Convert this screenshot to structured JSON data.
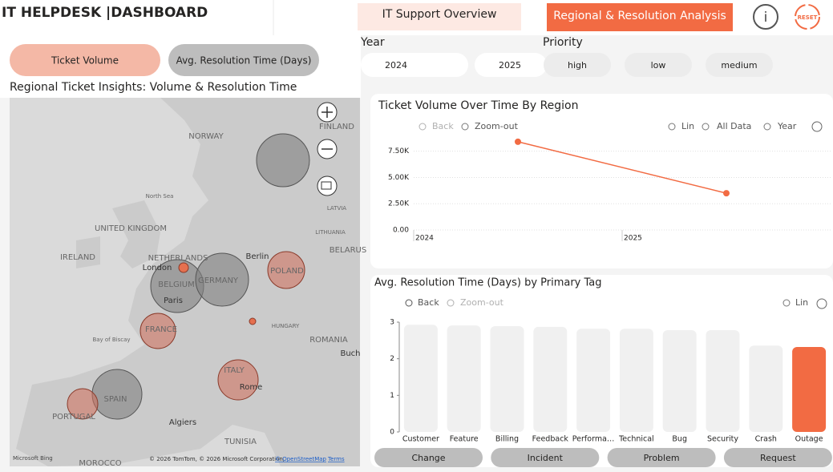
{
  "header": {
    "title": "IT HELPDESK  |DASHBOARD",
    "tabs": [
      "IT Support Overview",
      "Regional & Resolution Analysis"
    ],
    "info": "i",
    "reset": "RESET"
  },
  "toggles": [
    "Ticket Volume",
    "Avg. Resolution Time (Days)"
  ],
  "filters": {
    "year_label": "Year",
    "years": [
      "2024",
      "2025"
    ],
    "priority_label": "Priority",
    "priorities": [
      "high",
      "low",
      "medium"
    ]
  },
  "map": {
    "title": "Regional Ticket Insights: Volume & Resolution Time",
    "labels": [
      "FINLAND",
      "NORWAY",
      "North Sea",
      "UNITED KINGDOM",
      "IRELAND",
      "NETHERLANDS",
      "London",
      "BELGIUM",
      "Paris",
      "GERMANY",
      "Berlin",
      "POLAND",
      "BELARUS",
      "LATVIA",
      "LITHUANIA",
      "FRANCE",
      "Bay of Biscay",
      "HUNGARY",
      "ROMANIA",
      "Buch",
      "ITALY",
      "Rome",
      "SPAIN",
      "PORTUGAL",
      "Algiers",
      "TUNISIA",
      "MOROCCO"
    ],
    "brand": "Microsoft Bing",
    "attribution": "© 2026 TomTom, © 2026 Microsoft Corporation,",
    "osm": "© OpenStreetMap",
    "terms": "Terms"
  },
  "line_chart": {
    "type": "line",
    "title": "Ticket Volume Over Time By Region",
    "toolbar": [
      "Back",
      "Zoom-out",
      "Lin",
      "All Data",
      "Year"
    ],
    "categories": [
      "2024",
      "2025"
    ],
    "values": [
      8400,
      3500
    ],
    "color": "#f26b43",
    "ylim": [
      0,
      9000
    ],
    "yticks": [
      {
        "value": 0,
        "label": "0.00"
      },
      {
        "value": 2500,
        "label": "2.50K"
      },
      {
        "value": 5000,
        "label": "5.00K"
      },
      {
        "value": 7500,
        "label": "7.50K"
      }
    ],
    "grid": true
  },
  "bar_chart": {
    "type": "bar",
    "title": "Avg. Resolution Time (Days) by Primary Tag",
    "toolbar": [
      "Back",
      "Zoom-out",
      "Lin"
    ],
    "categories": [
      "Customer",
      "Feature",
      "Billing",
      "Feedback",
      "Performa…",
      "Technical",
      "Bug",
      "Security",
      "Crash",
      "Outage"
    ],
    "values": [
      2.93,
      2.91,
      2.89,
      2.87,
      2.82,
      2.82,
      2.78,
      2.78,
      2.36,
      2.32
    ],
    "colors": [
      "#f0f0f0",
      "#f0f0f0",
      "#f0f0f0",
      "#f0f0f0",
      "#f0f0f0",
      "#f0f0f0",
      "#f0f0f0",
      "#f0f0f0",
      "#f0f0f0",
      "#f26b43"
    ],
    "ylim": [
      0,
      3
    ],
    "yticks": [
      0,
      1,
      2,
      3
    ]
  },
  "buttons": [
    "Change",
    "Incident",
    "Problem",
    "Request"
  ]
}
